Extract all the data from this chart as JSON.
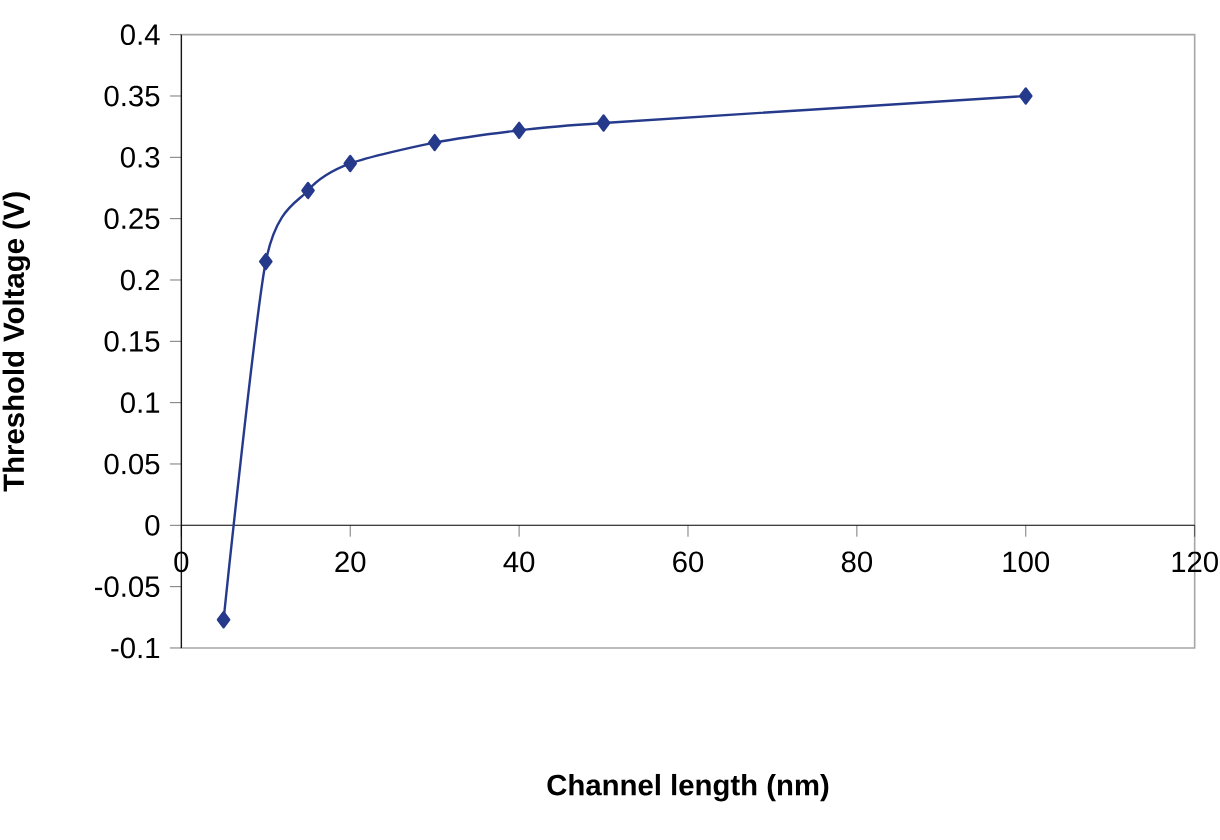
{
  "chart_data": {
    "type": "line",
    "xlabel": "Channel length (nm)",
    "ylabel": "Threshold Voltage (V)",
    "x": [
      5,
      10,
      15,
      20,
      30,
      40,
      50,
      100
    ],
    "series": [
      {
        "color": "#263a8c",
        "values": [
          -0.077,
          0.215,
          0.273,
          0.295,
          0.312,
          0.322,
          0.328,
          0.35
        ]
      }
    ],
    "xlim": [
      0,
      120
    ],
    "xticks": [
      0,
      20,
      40,
      60,
      80,
      100,
      120
    ],
    "ylim": [
      -0.1,
      0.4
    ],
    "yticks": [
      -0.1,
      -0.05,
      0,
      0.05,
      0.1,
      0.15,
      0.2,
      0.25,
      0.3,
      0.35,
      0.4
    ],
    "marker": "diamond",
    "line_style": "solid",
    "grid": false
  }
}
